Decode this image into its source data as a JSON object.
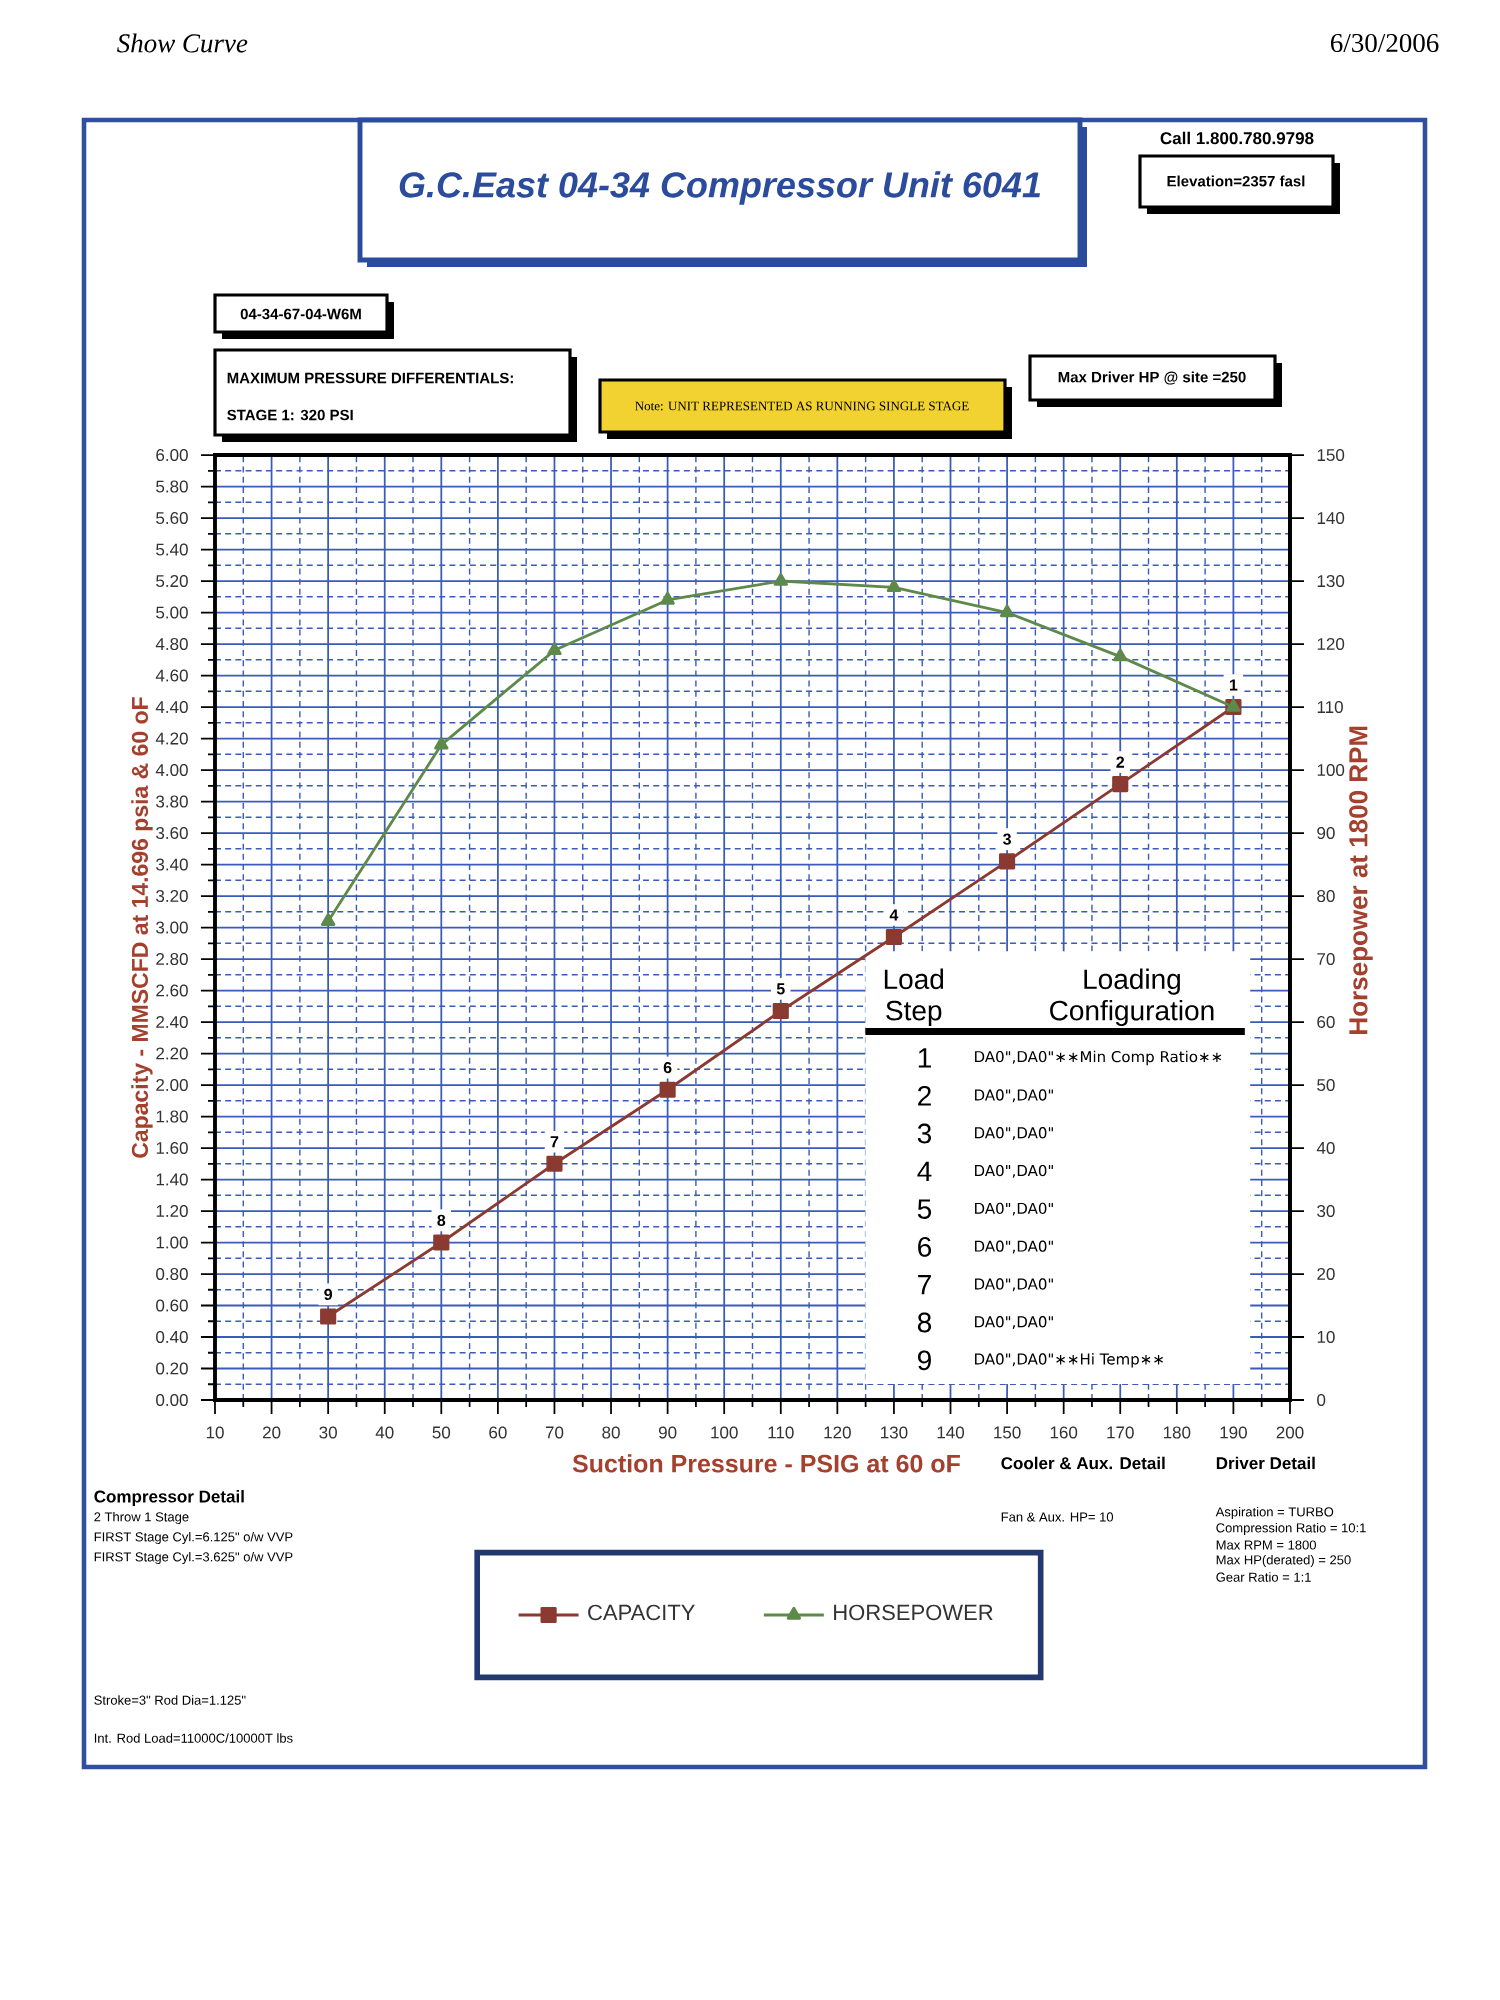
{
  "chart_data": {
    "type": "line",
    "title": "G.C.East 04-34 Compressor Unit 6041",
    "xlabel": "Suction Pressure - PSIG at 60 oF",
    "ylabel": "Capacity - MMSCFD at 14.696 psia & 60 oF",
    "y2label": "Horsepower at 1800 RPM",
    "x": [
      30,
      50,
      70,
      90,
      110,
      130,
      150,
      170,
      190
    ],
    "series": [
      {
        "name": "CAPACITY",
        "color": "#8b3a32",
        "marker": "square",
        "values": [
          0.53,
          1.0,
          1.5,
          1.97,
          2.47,
          2.94,
          3.42,
          3.91,
          4.4
        ]
      },
      {
        "name": "HORSEPOWER",
        "color": "#5d8a4a",
        "marker": "triangle",
        "axis": "y2",
        "values": [
          76,
          104,
          119,
          127,
          130,
          129,
          125,
          118,
          110
        ]
      }
    ],
    "xlim": [
      10,
      200
    ],
    "xticks": [
      10,
      {
        "value": 15,
        "label": null
      },
      20,
      {
        "value": 25,
        "label": null
      },
      30,
      {
        "value": 35,
        "label": null
      },
      40,
      {
        "value": 45,
        "label": null
      },
      50,
      {
        "value": 55,
        "label": null
      },
      60,
      {
        "value": 65,
        "label": null
      },
      70,
      {
        "value": 75,
        "label": null
      },
      80,
      {
        "value": 85,
        "label": null
      },
      90,
      {
        "value": 95,
        "label": null
      },
      100,
      {
        "value": 105,
        "label": null
      },
      110,
      {
        "value": 115,
        "label": null
      },
      120,
      {
        "value": 125,
        "label": null
      },
      130,
      {
        "value": 135,
        "label": null
      },
      140,
      {
        "value": 145,
        "label": null
      },
      150,
      {
        "value": 155,
        "label": null
      },
      160,
      {
        "value": 165,
        "label": null
      },
      170,
      {
        "value": 175,
        "label": null
      },
      180,
      {
        "value": 185,
        "label": null
      },
      190,
      {
        "value": 195,
        "label": null
      },
      200
    ],
    "ylim": [
      0,
      6
    ],
    "yticks": [
      {
        "value": 0,
        "label": "0.00"
      },
      {
        "value": 0.1,
        "label": null
      },
      {
        "value": 0.2,
        "label": "0.20"
      },
      {
        "value": 0.3,
        "label": null
      },
      {
        "value": 0.4,
        "label": "0.40"
      },
      {
        "value": 0.5,
        "label": null
      },
      {
        "value": 0.6,
        "label": "0.60"
      },
      {
        "value": 0.7,
        "label": null
      },
      {
        "value": 0.8,
        "label": "0.80"
      },
      {
        "value": 0.9,
        "label": null
      },
      {
        "value": 1,
        "label": "1.00"
      },
      {
        "value": 1.1,
        "label": null
      },
      {
        "value": 1.2,
        "label": "1.20"
      },
      {
        "value": 1.3,
        "label": null
      },
      {
        "value": 1.4,
        "label": "1.40"
      },
      {
        "value": 1.5,
        "label": null
      },
      {
        "value": 1.6,
        "label": "1.60"
      },
      {
        "value": 1.7,
        "label": null
      },
      {
        "value": 1.8,
        "label": "1.80"
      },
      {
        "value": 1.9,
        "label": null
      },
      {
        "value": 2,
        "label": "2.00"
      },
      {
        "value": 2.1,
        "label": null
      },
      {
        "value": 2.2,
        "label": "2.20"
      },
      {
        "value": 2.3,
        "label": null
      },
      {
        "value": 2.4,
        "label": "2.40"
      },
      {
        "value": 2.5,
        "label": null
      },
      {
        "value": 2.6,
        "label": "2.60"
      },
      {
        "value": 2.7,
        "label": null
      },
      {
        "value": 2.8,
        "label": "2.80"
      },
      {
        "value": 2.9,
        "label": null
      },
      {
        "value": 3,
        "label": "3.00"
      },
      {
        "value": 3.1,
        "label": null
      },
      {
        "value": 3.2,
        "label": "3.20"
      },
      {
        "value": 3.3,
        "label": null
      },
      {
        "value": 3.4,
        "label": "3.40"
      },
      {
        "value": 3.5,
        "label": null
      },
      {
        "value": 3.6,
        "label": "3.60"
      },
      {
        "value": 3.7,
        "label": null
      },
      {
        "value": 3.8,
        "label": "3.80"
      },
      {
        "value": 3.9,
        "label": null
      },
      {
        "value": 4,
        "label": "4.00"
      },
      {
        "value": 4.1,
        "label": null
      },
      {
        "value": 4.2,
        "label": "4.20"
      },
      {
        "value": 4.3,
        "label": null
      },
      {
        "value": 4.4,
        "label": "4.40"
      },
      {
        "value": 4.5,
        "label": null
      },
      {
        "value": 4.6,
        "label": "4.60"
      },
      {
        "value": 4.7,
        "label": null
      },
      {
        "value": 4.8,
        "label": "4.80"
      },
      {
        "value": 4.9,
        "label": null
      },
      {
        "value": 5,
        "label": "5.00"
      },
      {
        "value": 5.1,
        "label": null
      },
      {
        "value": 5.2,
        "label": "5.20"
      },
      {
        "value": 5.3,
        "label": null
      },
      {
        "value": 5.4,
        "label": "5.40"
      },
      {
        "value": 5.5,
        "label": null
      },
      {
        "value": 5.6,
        "label": "5.60"
      },
      {
        "value": 5.7,
        "label": null
      },
      {
        "value": 5.8,
        "label": "5.80"
      },
      {
        "value": 5.9,
        "label": null
      },
      {
        "value": 6,
        "label": "6.00"
      }
    ],
    "y2lim": [
      0,
      150
    ],
    "y2ticks": [
      0,
      10,
      20,
      30,
      40,
      50,
      60,
      70,
      80,
      90,
      100,
      110,
      120,
      130,
      140,
      150
    ],
    "grid": true,
    "legend": "bottom",
    "line_style": "solid",
    "annotations": [
      "Show Curve",
      "6/30/2006",
      "Call 1.800.780.9798",
      "Elevation=2357 fasl",
      "Max Driver HP @ site =250",
      "04-34-67-04-W6M",
      "MAXIMUM PRESSURE DIFFERENTIALS:",
      "STAGE 1: 320 PSI",
      "Note: UNIT REPRESENTED AS RUNNING SINGLE STAGE",
      "Compressor Detail",
      "2 Throw 1 Stage",
      "FIRST Stage Cyl.=6.125\" o/w VVP",
      "FIRST Stage Cyl.=3.625\" o/w VVP",
      "Stroke=3\"  Rod Dia=1.125\"",
      "Int. Rod Load=11000C/10000T lbs",
      "Cooler & Aux. Detail",
      "Fan & Aux. HP= 10",
      "Driver Detail",
      "Aspiration = TURBO",
      "Compression Ratio = 10:1",
      "Max RPM = 1800",
      "Max HP(derated) = 250",
      "Gear Ratio = 1:1",
      "Load Step",
      "Loading Configuration",
      "1",
      "2",
      "3",
      "4",
      "5",
      "6",
      "7",
      "8",
      "9",
      "DA0\",DA0\"∗∗Min Comp Ratio∗∗",
      "DA0\",DA0\"",
      "DA0\",DA0\"",
      "DA0\",DA0\"",
      "DA0\",DA0\"",
      "DA0\",DA0\"",
      "DA0\",DA0\"",
      "DA0\",DA0\"",
      "DA0\",DA0\"∗∗Hi Temp∗∗",
      {
        "text": "9",
        "x": 30,
        "y": 0.53
      },
      {
        "text": "8",
        "x": 50,
        "y": 1.0
      },
      {
        "text": "7",
        "x": 70,
        "y": 1.5
      },
      {
        "text": "6",
        "x": 90,
        "y": 1.97
      },
      {
        "text": "5",
        "x": 110,
        "y": 2.47
      },
      {
        "text": "4",
        "x": 130,
        "y": 2.94
      },
      {
        "text": "3",
        "x": 150,
        "y": 3.42
      },
      {
        "text": "2",
        "x": 170,
        "y": 3.91
      },
      {
        "text": "1",
        "x": 190,
        "y": 4.4
      }
    ]
  }
}
